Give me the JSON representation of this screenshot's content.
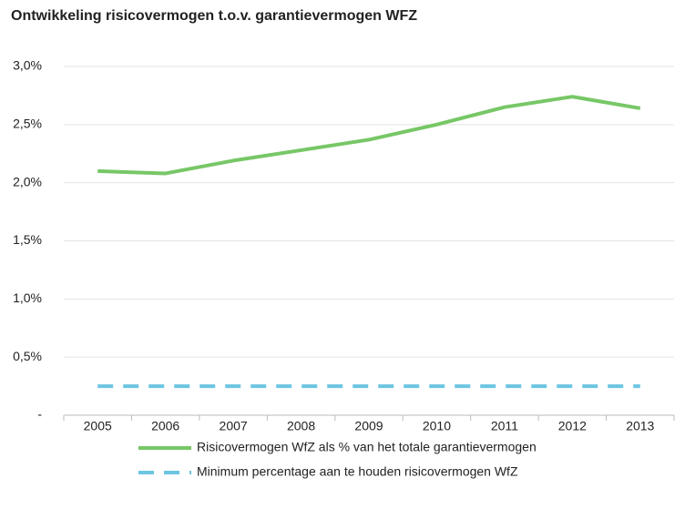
{
  "chart_data": {
    "type": "line",
    "title": "Ontwikkeling risicovermogen t.o.v. garantievermogen WFZ",
    "categories": [
      "2005",
      "2006",
      "2007",
      "2008",
      "2009",
      "2010",
      "2011",
      "2012",
      "2013"
    ],
    "series": [
      {
        "name": "Risicovermogen WfZ als % van het totale garantievermogen",
        "color": "#77c766",
        "style": "solid",
        "values": [
          2.1,
          2.08,
          2.19,
          2.28,
          2.37,
          2.5,
          2.65,
          2.74,
          2.64
        ]
      },
      {
        "name": "Minimum percentage aan te houden risicovermogen WfZ",
        "color": "#6cc5e2",
        "style": "dashed",
        "values": [
          0.25,
          0.25,
          0.25,
          0.25,
          0.25,
          0.25,
          0.25,
          0.25,
          0.25
        ]
      }
    ],
    "ylim": [
      0,
      3.0
    ],
    "yticks": [
      {
        "value": 0,
        "label": "-"
      },
      {
        "value": 0.5,
        "label": "0,5%"
      },
      {
        "value": 1.0,
        "label": "1,0%"
      },
      {
        "value": 1.5,
        "label": "1,5%"
      },
      {
        "value": 2.0,
        "label": "2,0%"
      },
      {
        "value": 2.5,
        "label": "2,5%"
      },
      {
        "value": 3.0,
        "label": "3,0%"
      }
    ],
    "grid": true,
    "legend": "bottom"
  }
}
